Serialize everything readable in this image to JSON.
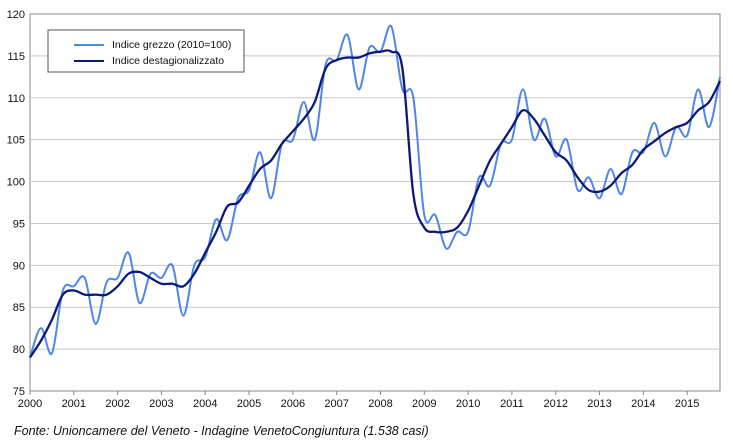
{
  "chart_data": {
    "type": "line",
    "title": "",
    "xlabel": "",
    "ylabel": "",
    "ylim": [
      75,
      120
    ],
    "xlim": [
      2000,
      2015.75
    ],
    "y_ticks": [
      "75",
      "80",
      "85",
      "90",
      "95",
      "100",
      "105",
      "110",
      "115",
      "120"
    ],
    "x_ticks": [
      "2000",
      "2001",
      "2002",
      "2003",
      "2004",
      "2005",
      "2006",
      "2007",
      "2008",
      "2009",
      "2010",
      "2011",
      "2012",
      "2013",
      "2014",
      "2015"
    ],
    "grid": true,
    "legend": "top-left",
    "x": [
      2000.0,
      2000.25,
      2000.5,
      2000.75,
      2001.0,
      2001.25,
      2001.5,
      2001.75,
      2002.0,
      2002.25,
      2002.5,
      2002.75,
      2003.0,
      2003.25,
      2003.5,
      2003.75,
      2004.0,
      2004.25,
      2004.5,
      2004.75,
      2005.0,
      2005.25,
      2005.5,
      2005.75,
      2006.0,
      2006.25,
      2006.5,
      2006.75,
      2007.0,
      2007.25,
      2007.5,
      2007.75,
      2008.0,
      2008.25,
      2008.5,
      2008.75,
      2009.0,
      2009.25,
      2009.5,
      2009.75,
      2010.0,
      2010.25,
      2010.5,
      2010.75,
      2011.0,
      2011.25,
      2011.5,
      2011.75,
      2012.0,
      2012.25,
      2012.5,
      2012.75,
      2013.0,
      2013.25,
      2013.5,
      2013.75,
      2014.0,
      2014.25,
      2014.5,
      2014.75,
      2015.0,
      2015.25,
      2015.5,
      2015.75
    ],
    "series": [
      {
        "name": "Indice grezzo (2010=100)",
        "color": "#4f86e8",
        "values": [
          79.0,
          82.5,
          79.5,
          87.0,
          87.5,
          88.5,
          83.0,
          88.0,
          88.5,
          91.5,
          85.5,
          89.0,
          88.5,
          90.0,
          84.0,
          90.0,
          91.0,
          95.5,
          93.0,
          98.0,
          99.0,
          103.5,
          98.0,
          104.5,
          105.0,
          109.5,
          105.0,
          114.0,
          114.5,
          117.5,
          111.0,
          116.0,
          115.5,
          118.5,
          111.0,
          110.0,
          96.0,
          96.0,
          92.0,
          94.0,
          94.0,
          100.5,
          99.5,
          104.5,
          105.0,
          111.0,
          105.0,
          107.5,
          103.0,
          105.0,
          99.0,
          100.5,
          98.0,
          101.5,
          98.5,
          103.5,
          103.5,
          107.0,
          103.0,
          106.5,
          105.5,
          111.0,
          106.5,
          112.5
        ]
      },
      {
        "name": "Indice destagionalizzato",
        "color": "#0b1a7a",
        "values": [
          79.0,
          81.0,
          83.5,
          86.5,
          87.0,
          86.5,
          86.5,
          86.5,
          87.5,
          89.0,
          89.2,
          88.5,
          87.8,
          87.8,
          87.5,
          89.0,
          91.5,
          94.0,
          97.0,
          97.5,
          99.5,
          101.5,
          102.5,
          104.5,
          106.0,
          107.5,
          109.5,
          113.5,
          114.5,
          114.8,
          114.8,
          115.3,
          115.5,
          115.5,
          113.5,
          98.5,
          94.5,
          94.0,
          94.0,
          94.5,
          96.5,
          99.5,
          102.5,
          104.5,
          106.5,
          108.5,
          107.5,
          105.5,
          103.5,
          102.5,
          100.5,
          99.0,
          98.8,
          99.5,
          101.0,
          102.0,
          103.8,
          104.8,
          105.8,
          106.5,
          107.0,
          108.5,
          109.5,
          112.0
        ]
      }
    ]
  },
  "source_note": "Fonte: Unioncamere del Veneto - Indagine VenetoCongiuntura (1.538 casi)"
}
